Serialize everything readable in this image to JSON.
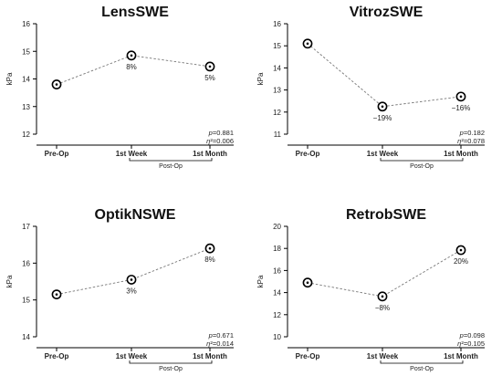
{
  "chart_data": [
    {
      "type": "line",
      "title": "LensSWE",
      "ylabel": "kPa",
      "categories": [
        "Pre-Op",
        "1st Week",
        "1st Month"
      ],
      "group_label": "Post-Op",
      "values": [
        13.8,
        14.85,
        14.45
      ],
      "point_labels": [
        "",
        "8%",
        "5%"
      ],
      "ylim": [
        12,
        16
      ],
      "yticks": [
        "12",
        "13",
        "14",
        "15",
        "16"
      ],
      "stats": {
        "p_symbol": "p",
        "p_value": "=0.881",
        "eta_symbol": "η",
        "eta_value": "²=0.006"
      }
    },
    {
      "type": "line",
      "title": "VitrozSWE",
      "ylabel": "kPa",
      "categories": [
        "Pre-Op",
        "1st Week",
        "1st Month"
      ],
      "group_label": "Post-Op",
      "values": [
        15.1,
        12.25,
        12.7
      ],
      "point_labels": [
        "",
        "−19%",
        "−16%"
      ],
      "ylim": [
        11,
        16
      ],
      "yticks": [
        "11",
        "12",
        "13",
        "14",
        "15",
        "16"
      ],
      "stats": {
        "p_symbol": "p",
        "p_value": "=0.182",
        "eta_symbol": "η",
        "eta_value": "²=0.078"
      }
    },
    {
      "type": "line",
      "title": "OptikNSWE",
      "ylabel": "kPa",
      "categories": [
        "Pre-Op",
        "1st Week",
        "1st Month"
      ],
      "group_label": "Post-Op",
      "values": [
        15.15,
        15.55,
        16.4
      ],
      "point_labels": [
        "",
        "3%",
        "8%"
      ],
      "ylim": [
        14,
        17
      ],
      "yticks": [
        "14",
        "15",
        "16",
        "17"
      ],
      "stats": {
        "p_symbol": "p",
        "p_value": "=0.671",
        "eta_symbol": "η",
        "eta_value": "²=0.014"
      }
    },
    {
      "type": "line",
      "title": "RetrobSWE",
      "ylabel": "kPa",
      "categories": [
        "Pre-Op",
        "1st Week",
        "1st Month"
      ],
      "group_label": "Post-Op",
      "values": [
        14.9,
        13.65,
        17.85
      ],
      "point_labels": [
        "",
        "−8%",
        "20%"
      ],
      "ylim": [
        10,
        20
      ],
      "yticks": [
        "10",
        "12",
        "14",
        "16",
        "18",
        "20"
      ],
      "stats": {
        "p_symbol": "p",
        "p_value": "=0.098",
        "eta_symbol": "η",
        "eta_value": "²=0.105"
      }
    }
  ]
}
